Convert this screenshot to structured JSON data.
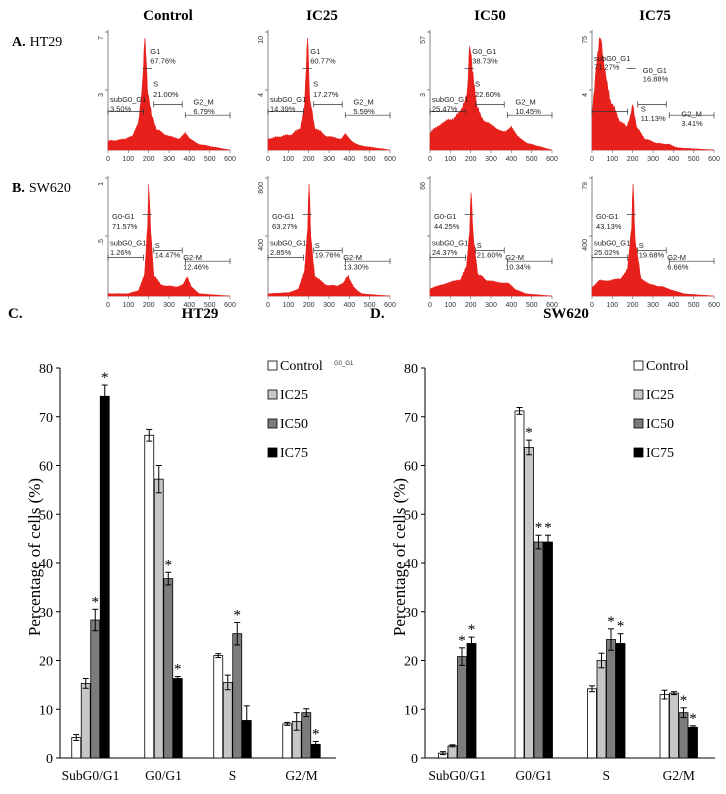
{
  "columns": [
    "Control",
    "IC25",
    "IC50",
    "IC75"
  ],
  "rows": [
    {
      "prefix": "A.",
      "label": "HT29"
    },
    {
      "prefix": "B.",
      "label": "SW620"
    }
  ],
  "panel_labels": {
    "c": "C.",
    "d": "D."
  },
  "colors": {
    "red": "#e8201b",
    "control": "#ffffff",
    "ic25": "#c7c7c7",
    "ic50": "#7c7c7c",
    "ic75": "#000000"
  },
  "histograms": [
    [
      {
        "ymax_label": "7",
        "ymax": 7,
        "labels": [
          {
            "text": "G1",
            "anchor": "g1"
          },
          {
            "text": "67.76%",
            "anchor": "g1v"
          },
          {
            "text": "S",
            "anchor": "s"
          },
          {
            "text": "21.00%",
            "anchor": "sv"
          },
          {
            "text": "subG0_G1",
            "anchor": "sub"
          },
          {
            "text": "3.50%",
            "anchor": "subv"
          },
          {
            "text": "G2_M",
            "anchor": "g2"
          },
          {
            "text": "6.79%",
            "anchor": "g2v"
          }
        ]
      },
      {
        "ymax_label": "10",
        "ymax": 10,
        "labels": [
          {
            "text": "G1",
            "anchor": "g1"
          },
          {
            "text": "60.77%",
            "anchor": "g1v"
          },
          {
            "text": "S",
            "anchor": "s"
          },
          {
            "text": "17.27%",
            "anchor": "sv"
          },
          {
            "text": "subG0_G1",
            "anchor": "sub"
          },
          {
            "text": "14.39%",
            "anchor": "subv"
          },
          {
            "text": "G2_M",
            "anchor": "g2"
          },
          {
            "text": "5.59%",
            "anchor": "g2v"
          }
        ]
      },
      {
        "ymax_label": "57",
        "ymax": 57,
        "labels": [
          {
            "text": "G0_G1",
            "anchor": "g1"
          },
          {
            "text": "38.73%",
            "anchor": "g1v"
          },
          {
            "text": "S",
            "anchor": "s"
          },
          {
            "text": "22.60%",
            "anchor": "sv"
          },
          {
            "text": "subG0_G1",
            "anchor": "sub"
          },
          {
            "text": "25.47%",
            "anchor": "subv"
          },
          {
            "text": "G2_M",
            "anchor": "g2"
          },
          {
            "text": "10.45%",
            "anchor": "g2v"
          }
        ]
      },
      {
        "ymax_label": "75",
        "ymax": 75,
        "labels": [
          {
            "text": "subG0_G1",
            "anchor": "sub"
          },
          {
            "text": "71.27%",
            "anchor": "subv"
          },
          {
            "text": "G0_G1",
            "anchor": "g1"
          },
          {
            "text": "16.88%",
            "anchor": "g1v"
          },
          {
            "text": "S",
            "anchor": "s"
          },
          {
            "text": "11.13%",
            "anchor": "sv"
          },
          {
            "text": "G2_M",
            "anchor": "g2"
          },
          {
            "text": "3.41%",
            "anchor": "g2v"
          }
        ]
      }
    ],
    [
      {
        "ymax_label": "1",
        "ymax": 1,
        "labels": [
          {
            "text": "G0-G1",
            "anchor": "g1"
          },
          {
            "text": "71.57%",
            "anchor": "g1v"
          },
          {
            "text": "subG0_G1",
            "anchor": "sub"
          },
          {
            "text": "1.26%",
            "anchor": "subv"
          },
          {
            "text": "S",
            "anchor": "s"
          },
          {
            "text": "14.47%",
            "anchor": "sv"
          },
          {
            "text": "G2-M",
            "anchor": "g2"
          },
          {
            "text": "12.46%",
            "anchor": "g2v"
          }
        ]
      },
      {
        "ymax_label": "800",
        "ymax": 800,
        "labels": [
          {
            "text": "G0-G1",
            "anchor": "g1"
          },
          {
            "text": "63.27%",
            "anchor": "g1v"
          },
          {
            "text": "subG0_G1",
            "anchor": "sub"
          },
          {
            "text": "2.85%",
            "anchor": "subv"
          },
          {
            "text": "S",
            "anchor": "s"
          },
          {
            "text": "19.76%",
            "anchor": "sv"
          },
          {
            "text": "G2-M",
            "anchor": "g2"
          },
          {
            "text": "13.30%",
            "anchor": "g2v"
          }
        ]
      },
      {
        "ymax_label": "66",
        "ymax": 66,
        "labels": [
          {
            "text": "G0-G1",
            "anchor": "g1"
          },
          {
            "text": "44.25%",
            "anchor": "g1v"
          },
          {
            "text": "subG0_G1",
            "anchor": "sub"
          },
          {
            "text": "24.37%",
            "anchor": "subv"
          },
          {
            "text": "S",
            "anchor": "s"
          },
          {
            "text": "21.60%",
            "anchor": "sv"
          },
          {
            "text": "G2-M",
            "anchor": "g2"
          },
          {
            "text": "10.34%",
            "anchor": "g2v"
          }
        ]
      },
      {
        "ymax_label": "79",
        "ymax": 79,
        "labels": [
          {
            "text": "G0-G1",
            "anchor": "g1"
          },
          {
            "text": "43.13%",
            "anchor": "g1v"
          },
          {
            "text": "subG0_G1",
            "anchor": "sub"
          },
          {
            "text": "25.02%",
            "anchor": "subv"
          },
          {
            "text": "S",
            "anchor": "s"
          },
          {
            "text": "19.68%",
            "anchor": "sv"
          },
          {
            "text": "G2-M",
            "anchor": "g2"
          },
          {
            "text": "6.66%",
            "anchor": "g2v"
          }
        ]
      }
    ]
  ],
  "histogram_axis": {
    "xticks": [
      0,
      100,
      200,
      300,
      400,
      500,
      600
    ],
    "row_a_ymid": [
      "3",
      "4",
      "3",
      "4"
    ],
    "row_b_ymid": [
      ".5",
      "400",
      "",
      "400"
    ]
  },
  "stray_label": "G0_G1",
  "chart_data": [
    {
      "type": "bar",
      "title": "HT29",
      "categories": [
        "SubG0/G1",
        "G0/G1",
        "S",
        "G2/M"
      ],
      "ylabel": "Percentage of cells (%)",
      "ylim": [
        0,
        80
      ],
      "yticks": [
        0,
        10,
        20,
        30,
        40,
        50,
        60,
        70,
        80
      ],
      "legend": "top-right",
      "series": [
        {
          "name": "Control",
          "values": [
            4.2,
            66.2,
            21.0,
            7.0
          ],
          "errors": [
            0.6,
            1.2,
            0.4,
            0.3
          ],
          "stars": [
            false,
            false,
            false,
            false
          ]
        },
        {
          "name": "IC25",
          "values": [
            15.3,
            57.2,
            15.5,
            7.5
          ],
          "errors": [
            1.0,
            2.8,
            1.5,
            1.8
          ],
          "stars": [
            false,
            false,
            false,
            false
          ]
        },
        {
          "name": "IC50",
          "values": [
            28.3,
            36.8,
            25.5,
            9.3
          ],
          "errors": [
            2.2,
            1.3,
            2.3,
            0.8
          ],
          "stars": [
            true,
            true,
            true,
            false
          ]
        },
        {
          "name": "IC75",
          "values": [
            74.2,
            16.3,
            7.7,
            2.8
          ],
          "errors": [
            2.3,
            0.4,
            3.0,
            0.6
          ],
          "stars": [
            true,
            true,
            false,
            true
          ]
        }
      ]
    },
    {
      "type": "bar",
      "title": "SW620",
      "categories": [
        "SubG0/G1",
        "G0/G1",
        "S",
        "G2/M"
      ],
      "ylabel": "Percentage of cells (%)",
      "ylim": [
        0,
        80
      ],
      "yticks": [
        0,
        10,
        20,
        30,
        40,
        50,
        60,
        70,
        80
      ],
      "legend": "top-right",
      "series": [
        {
          "name": "Control",
          "values": [
            1.0,
            71.2,
            14.2,
            13.0
          ],
          "errors": [
            0.3,
            0.7,
            0.6,
            0.9
          ],
          "stars": [
            false,
            false,
            false,
            false
          ]
        },
        {
          "name": "IC25",
          "values": [
            2.5,
            63.7,
            20.0,
            13.3
          ],
          "errors": [
            0.2,
            1.5,
            1.5,
            0.3
          ],
          "stars": [
            false,
            true,
            false,
            false
          ]
        },
        {
          "name": "IC50",
          "values": [
            20.8,
            44.3,
            24.3,
            9.3
          ],
          "errors": [
            1.8,
            1.4,
            2.2,
            1.0
          ],
          "stars": [
            true,
            true,
            true,
            true
          ]
        },
        {
          "name": "IC75",
          "values": [
            23.5,
            44.3,
            23.5,
            6.3
          ],
          "errors": [
            1.3,
            1.4,
            2.0,
            0.3
          ],
          "stars": [
            true,
            true,
            true,
            true
          ]
        }
      ]
    }
  ]
}
